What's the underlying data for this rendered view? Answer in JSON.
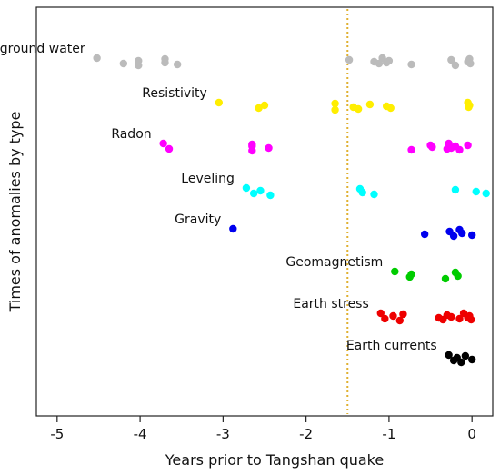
{
  "chart_data": {
    "type": "scatter",
    "xlabel": "Years prior to Tangshan quake",
    "ylabel": "Times of anomalies by type",
    "xlim": [
      -5.25,
      0.25
    ],
    "xticks": [
      -5,
      -4,
      -3,
      -2,
      -1,
      0
    ],
    "xtick_labels": [
      "-5",
      "-4",
      "-3",
      "-2",
      "-1",
      "0"
    ],
    "grid": false,
    "reference_line": {
      "x": -1.5,
      "style": "dotted",
      "color": "#e0b030"
    },
    "series": [
      {
        "name": "Underground water",
        "color": "#bbbbbb",
        "x": [
          -4.52,
          -4.2,
          -4.02,
          -4.02,
          -3.7,
          -3.7,
          -3.55,
          -1.48,
          -1.18,
          -1.12,
          -1.08,
          -1.03,
          -1.0,
          -0.73,
          -0.25,
          -0.2,
          -0.05,
          -0.03,
          -0.02
        ]
      },
      {
        "name": "Resistivity",
        "color": "#ffee00",
        "x": [
          -3.05,
          -2.57,
          -2.5,
          -1.65,
          -1.65,
          -1.43,
          -1.37,
          -1.23,
          -1.03,
          -0.98,
          -0.05,
          -0.04,
          -0.03
        ]
      },
      {
        "name": "Radon",
        "color": "#ff00ff",
        "x": [
          -3.72,
          -3.65,
          -2.65,
          -2.65,
          -2.65,
          -2.45,
          -0.73,
          -0.5,
          -0.48,
          -0.3,
          -0.28,
          -0.25,
          -0.2,
          -0.15,
          -0.05
        ]
      },
      {
        "name": "Leveling",
        "color": "#00ffff",
        "x": [
          -2.72,
          -2.63,
          -2.55,
          -2.43,
          -1.35,
          -1.32,
          -1.18,
          -0.2,
          0.05,
          0.17
        ]
      },
      {
        "name": "Gravity",
        "color": "#0000ee",
        "x": [
          -2.88,
          -0.57,
          -0.27,
          -0.22,
          -0.15,
          -0.12,
          0.0
        ]
      },
      {
        "name": "Geomagnetism",
        "color": "#00cc00",
        "x": [
          -0.93,
          -0.75,
          -0.73,
          -0.32,
          -0.2,
          -0.17
        ]
      },
      {
        "name": "Earth stress",
        "color": "#ee0000",
        "x": [
          -1.1,
          -1.05,
          -0.95,
          -0.87,
          -0.83,
          -0.4,
          -0.35,
          -0.3,
          -0.25,
          -0.15,
          -0.1,
          -0.05,
          -0.03,
          -0.01
        ]
      },
      {
        "name": "Earth currents",
        "color": "#000000",
        "x": [
          -0.28,
          -0.22,
          -0.18,
          -0.13,
          -0.08,
          0.0
        ]
      }
    ]
  }
}
